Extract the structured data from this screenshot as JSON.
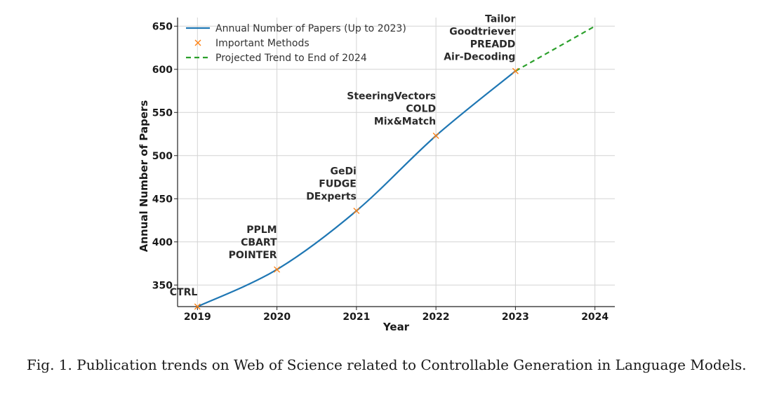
{
  "chart_data": {
    "type": "line",
    "title": "",
    "xlabel": "Year",
    "ylabel": "Annual Number of Papers",
    "xlim": [
      2018.75,
      2024.25
    ],
    "ylim": [
      325,
      660
    ],
    "x_ticks": [
      2019,
      2020,
      2021,
      2022,
      2023,
      2024
    ],
    "y_ticks": [
      350,
      400,
      450,
      500,
      550,
      600,
      650
    ],
    "grid": true,
    "legend_position": "top-left",
    "series": [
      {
        "name": "Annual Number of Papers (Up to 2023)",
        "color": "#1f77b4",
        "style": "solid",
        "x": [
          2019,
          2020,
          2021,
          2022,
          2023
        ],
        "y": [
          325,
          368,
          436,
          523,
          598
        ]
      },
      {
        "name": "Important Methods",
        "color": "#ff7f0e",
        "style": "marker-x",
        "x": [
          2019,
          2020,
          2021,
          2022,
          2023
        ],
        "y": [
          325,
          368,
          436,
          523,
          598
        ]
      },
      {
        "name": "Projected Trend to End of 2024",
        "color": "#2ca02c",
        "style": "dashed",
        "x": [
          2023,
          2024
        ],
        "y": [
          598,
          650
        ]
      }
    ],
    "annotations": [
      {
        "x": 2019,
        "y": 325,
        "lines": [
          "CTRL"
        ]
      },
      {
        "x": 2020,
        "y": 368,
        "lines": [
          "PPLM",
          "CBART",
          "POINTER"
        ]
      },
      {
        "x": 2021,
        "y": 436,
        "lines": [
          "GeDi",
          "FUDGE",
          "DExperts"
        ]
      },
      {
        "x": 2022,
        "y": 523,
        "lines": [
          "SteeringVectors",
          "COLD",
          "Mix&Match"
        ]
      },
      {
        "x": 2023,
        "y": 598,
        "lines": [
          "Tailor",
          "Goodtriever",
          "PREADD",
          "Air-Decoding"
        ]
      }
    ]
  },
  "caption": {
    "text": "Fig. 1.  Publication trends on Web of Science related to Controllable Generation in Language Models."
  }
}
